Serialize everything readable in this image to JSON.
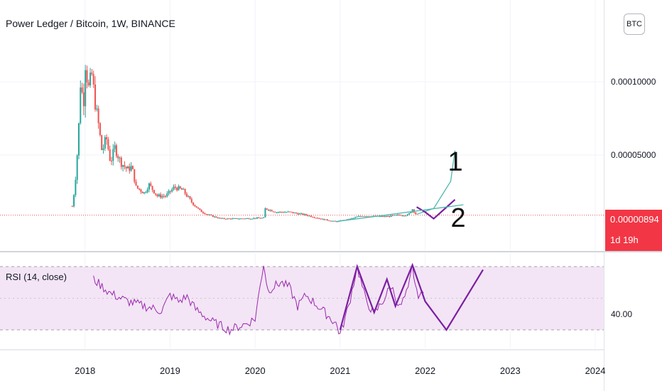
{
  "header": {
    "title": "Power Ledger / Bitcoin, 1W, BINANCE"
  },
  "currency_badge": "BTC",
  "price_tag": {
    "price": "0.00000894",
    "countdown": "1d 19h",
    "color": "#f23645"
  },
  "rsi_panel": {
    "label": "RSI (14, close)"
  },
  "colors": {
    "up": "#26a69a",
    "down": "#ef5350",
    "rsi": "#9c27b0",
    "drawing": "#7b1fa2",
    "projection": "#4db6ac",
    "rsi_band": "#f3e5f5"
  },
  "chart_data": [
    {
      "type": "candlestick",
      "ylim": [
        0,
        0.000135
      ],
      "y_ticks": [
        "0.00010000",
        "0.00005000"
      ],
      "y_tick_values": [
        0.0001,
        5e-05
      ],
      "x_ticks": [
        "2018",
        "2019",
        "2020",
        "2021",
        "2022",
        "2023",
        "2024"
      ],
      "x_tick_values": [
        2018,
        2019,
        2020,
        2021,
        2022,
        2023,
        2024
      ],
      "xlim": [
        2017.0,
        2024.1
      ],
      "current_price": 8.94e-06,
      "price_path": [
        [
          2017.85,
          1.5e-05
        ],
        [
          2017.88,
          2.8e-05
        ],
        [
          2017.92,
          6e-05
        ],
        [
          2017.95,
          0.000105
        ],
        [
          2017.98,
          8e-05
        ],
        [
          2018.0,
          0.000115
        ],
        [
          2018.04,
          9.5e-05
        ],
        [
          2018.08,
          0.000105
        ],
        [
          2018.12,
          8.5e-05
        ],
        [
          2018.16,
          7e-05
        ],
        [
          2018.2,
          5.2e-05
        ],
        [
          2018.25,
          6.2e-05
        ],
        [
          2018.3,
          4.5e-05
        ],
        [
          2018.35,
          5.5e-05
        ],
        [
          2018.42,
          4.5e-05
        ],
        [
          2018.5,
          4e-05
        ],
        [
          2018.55,
          4.2e-05
        ],
        [
          2018.6,
          2.8e-05
        ],
        [
          2018.7,
          2.4e-05
        ],
        [
          2018.75,
          3e-05
        ],
        [
          2018.85,
          2.2e-05
        ],
        [
          2018.95,
          2.2e-05
        ],
        [
          2019.05,
          2.8e-05
        ],
        [
          2019.15,
          2.6e-05
        ],
        [
          2019.25,
          1.8e-05
        ],
        [
          2019.35,
          1.2e-05
        ],
        [
          2019.45,
          9e-06
        ],
        [
          2019.6,
          6.5e-06
        ],
        [
          2019.8,
          6.5e-06
        ],
        [
          2020.1,
          7e-06
        ],
        [
          2020.12,
          1.35e-05
        ],
        [
          2020.25,
          1.1e-05
        ],
        [
          2020.4,
          1.1e-05
        ],
        [
          2020.6,
          9e-06
        ],
        [
          2020.8,
          6e-06
        ],
        [
          2020.95,
          4.5e-06
        ],
        [
          2021.1,
          6e-06
        ],
        [
          2021.25,
          8.5e-06
        ],
        [
          2021.4,
          8e-06
        ],
        [
          2021.55,
          8e-06
        ],
        [
          2021.7,
          9e-06
        ],
        [
          2021.8,
          9e-06
        ],
        [
          2021.85,
          1.3e-05
        ],
        [
          2021.9,
          9e-06
        ]
      ],
      "annotations": [
        {
          "label": "1",
          "path": [
            [
              2021.9,
              9.5e-06
            ],
            [
              2022.1,
              1.35e-05
            ],
            [
              2022.3,
              3.2e-05
            ],
            [
              2022.35,
              5.3e-05
            ]
          ]
        },
        {
          "label": "2",
          "path": [
            [
              2021.9,
              1.45e-05
            ],
            [
              2022.0,
              1.1e-05
            ],
            [
              2022.1,
              6.5e-06
            ],
            [
              2022.35,
              1.95e-05
            ]
          ]
        }
      ]
    },
    {
      "type": "line",
      "name": "RSI (14, close)",
      "ylim": [
        20,
        80
      ],
      "y_ticks": [
        "40.00"
      ],
      "y_tick_values": [
        40
      ],
      "bands": [
        30,
        70
      ],
      "x": [
        2018.1,
        2018.3,
        2018.5,
        2018.7,
        2018.9,
        2019.0,
        2019.1,
        2019.2,
        2019.3,
        2019.5,
        2019.7,
        2019.9,
        2020.0,
        2020.1,
        2020.15,
        2020.3,
        2020.4,
        2020.5,
        2020.6,
        2020.8,
        2020.95,
        2021.0,
        2021.1,
        2021.2,
        2021.3,
        2021.4,
        2021.5,
        2021.6,
        2021.7,
        2021.8,
        2021.85,
        2021.9,
        2022.0
      ],
      "y": [
        62,
        53,
        48,
        45,
        42,
        52,
        48,
        51,
        43,
        35,
        30,
        34,
        37,
        72,
        55,
        60,
        57,
        45,
        52,
        42,
        34,
        27,
        45,
        70,
        49,
        40,
        48,
        58,
        44,
        55,
        70,
        53,
        52
      ],
      "drawing": [
        [
          2021.0,
          30
        ],
        [
          2021.2,
          70
        ],
        [
          2021.4,
          41
        ],
        [
          2021.55,
          62
        ],
        [
          2021.65,
          45
        ],
        [
          2021.85,
          71
        ],
        [
          2022.0,
          48
        ],
        [
          2022.25,
          30
        ],
        [
          2022.68,
          68
        ]
      ]
    }
  ]
}
